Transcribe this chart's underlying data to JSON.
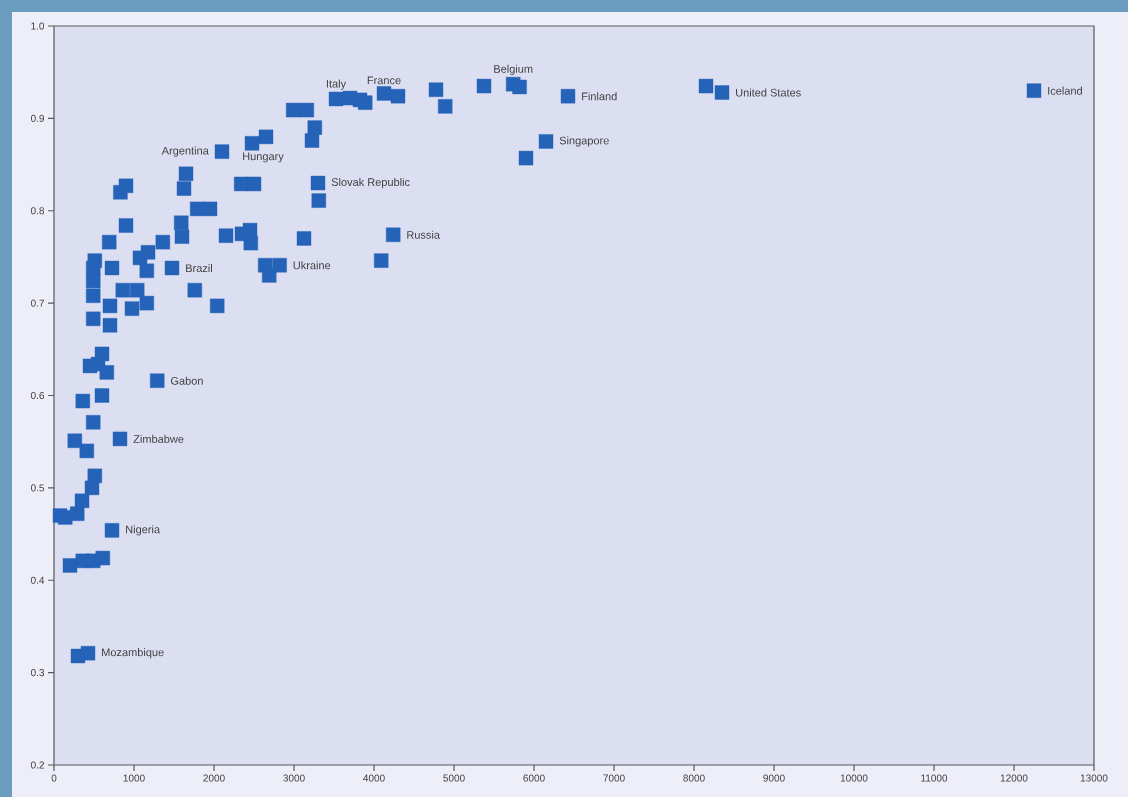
{
  "chart_data": {
    "type": "scatter",
    "color": "#2563b8",
    "marker": "square",
    "xlim": [
      0,
      13000
    ],
    "ylim": [
      0.2,
      1.0
    ],
    "xticks": [
      0,
      1000,
      2000,
      3000,
      4000,
      5000,
      6000,
      7000,
      8000,
      9000,
      10000,
      11000,
      12000,
      13000
    ],
    "yticks": [
      0.2,
      0.3,
      0.4,
      0.5,
      0.6,
      0.7,
      0.8,
      0.9,
      {
        "value": 1.0,
        "label": "1.0"
      }
    ],
    "x": [
      12250,
      8150,
      8350,
      6425,
      5740,
      5820,
      5375,
      6150,
      5900,
      4775,
      4890,
      4125,
      4300,
      3825,
      3700,
      3525,
      3890,
      2990,
      3160,
      3260,
      3225,
      2475,
      2650,
      2100,
      3300,
      3310,
      2340,
      2500,
      1650,
      1625,
      1790,
      1950,
      1590,
      1600,
      2150,
      2350,
      2450,
      2460,
      3125,
      4240,
      4090,
      2640,
      2820,
      2690,
      1760,
      2040,
      1475,
      830,
      900,
      900,
      690,
      510,
      490,
      725,
      490,
      490,
      860,
      1040,
      1160,
      975,
      700,
      490,
      700,
      1075,
      1175,
      1360,
      1160,
      600,
      550,
      660,
      450,
      1290,
      600,
      360,
      490,
      825,
      260,
      410,
      510,
      475,
      350,
      290,
      140,
      75,
      725,
      200,
      360,
      610,
      490,
      300,
      425
    ],
    "values": [
      0.93,
      0.935,
      0.928,
      0.924,
      0.937,
      0.934,
      0.935,
      0.875,
      0.857,
      0.931,
      0.913,
      0.927,
      0.924,
      0.92,
      0.922,
      0.921,
      0.917,
      0.909,
      0.909,
      0.89,
      0.876,
      0.873,
      0.88,
      0.864,
      0.83,
      0.811,
      0.829,
      0.829,
      0.84,
      0.824,
      0.802,
      0.802,
      0.787,
      0.772,
      0.773,
      0.775,
      0.779,
      0.765,
      0.77,
      0.774,
      0.746,
      0.741,
      0.741,
      0.73,
      0.714,
      0.697,
      0.738,
      0.82,
      0.827,
      0.784,
      0.766,
      0.746,
      0.738,
      0.738,
      0.724,
      0.708,
      0.714,
      0.714,
      0.7,
      0.694,
      0.697,
      0.683,
      0.676,
      0.749,
      0.755,
      0.766,
      0.735,
      0.645,
      0.634,
      0.625,
      0.632,
      0.616,
      0.6,
      0.594,
      0.571,
      0.553,
      0.551,
      0.54,
      0.513,
      0.5,
      0.486,
      0.472,
      0.468,
      0.47,
      0.454,
      0.416,
      0.421,
      0.424,
      0.421,
      0.318,
      0.321
    ],
    "annotations": [
      {
        "text": "Italy",
        "x": 3525,
        "y": 0.921
      },
      {
        "text": "Iceland",
        "x": 12250,
        "y": 0.93
      },
      {
        "text": "United States",
        "x": 8350,
        "y": 0.928
      },
      {
        "text": "Finland",
        "x": 6425,
        "y": 0.924
      },
      {
        "text": "Belgium",
        "x": 5740,
        "y": 0.937
      },
      {
        "text": "France",
        "x": 4125,
        "y": 0.927
      },
      {
        "text": "Singapore",
        "x": 6150,
        "y": 0.875
      },
      {
        "text": "Argentina",
        "x": 2100,
        "y": 0.864
      },
      {
        "text": "Hungary",
        "x": 2475,
        "y": 0.873
      },
      {
        "text": "Slovak Republic",
        "x": 3300,
        "y": 0.83
      },
      {
        "text": "Russia",
        "x": 4240,
        "y": 0.774
      },
      {
        "text": "Brazil",
        "x": 1475,
        "y": 0.738
      },
      {
        "text": "Ukraine",
        "x": 2820,
        "y": 0.741
      },
      {
        "text": "Gabon",
        "x": 1290,
        "y": 0.616
      },
      {
        "text": "Zimbabwe",
        "x": 825,
        "y": 0.553
      },
      {
        "text": "Nigeria",
        "x": 725,
        "y": 0.454
      },
      {
        "text": "Mozambique",
        "x": 425,
        "y": 0.321
      }
    ]
  }
}
